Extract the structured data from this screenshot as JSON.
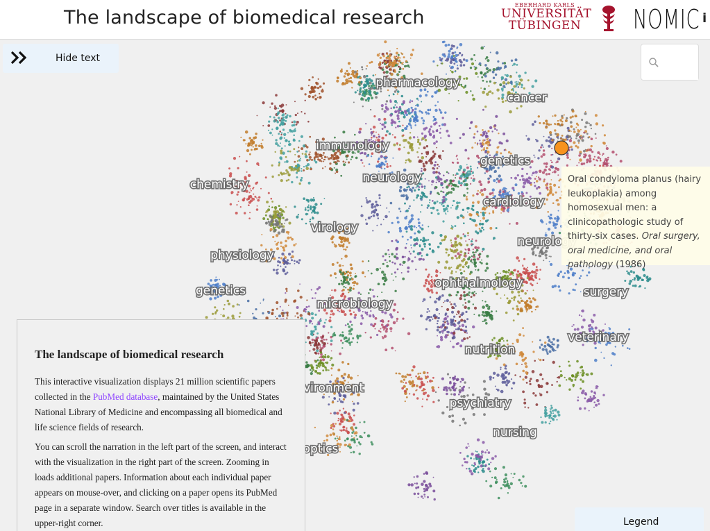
{
  "header": {
    "title": "The landscape of biomedical research",
    "university": {
      "line1": "EBERHARD KARLS",
      "line2": "UNIVERSITÄT",
      "line3": "TÜBINGEN"
    },
    "partner_logo": "NOMIC",
    "info_label": "i"
  },
  "controls": {
    "hide_text_label": "Hide text",
    "search_placeholder": "",
    "legend_label": "Legend"
  },
  "map_labels": [
    "pharmacology",
    "cancer",
    "immunology",
    "genetics",
    "chemistry",
    "neurology",
    "cardiology",
    "virology",
    "neurology",
    "physiology",
    "genetics",
    "ophthalmology",
    "surgery",
    "microbiology",
    "veterinary",
    "nutrition",
    "environment",
    "psychiatry",
    "nursing",
    "optics"
  ],
  "tooltip": {
    "title": "Oral condyloma planus (hairy leukoplakia) among homosexual men: a clinicopathologic study of thirty-six cases.",
    "journal": "Oral surgery, oral medicine, and oral pathology",
    "year": "(1986)"
  },
  "narration": {
    "heading": "The landscape of biomedical research",
    "p1_before": "This interactive visualization displays 21 million scientific papers collected in the ",
    "p1_link": "PubMed database",
    "p1_after": ", maintained by the United States National Library of Medicine and encompassing all biomedical and life science fields of research.",
    "p2": "You can scroll the narration in the left part of the screen, and interact with the visualization in the right part of the screen. Zooming in loads additional papers. Information about each individual paper appears on mouse-over, and clicking on a paper opens its PubMed page in a separate window. Search over titles is available in the upper-right corner."
  },
  "colors": {
    "accent_university": "#a5132d",
    "highlight_point": "#f7931e",
    "link": "#8e44ff",
    "button_bg": "#eaf3fb"
  }
}
